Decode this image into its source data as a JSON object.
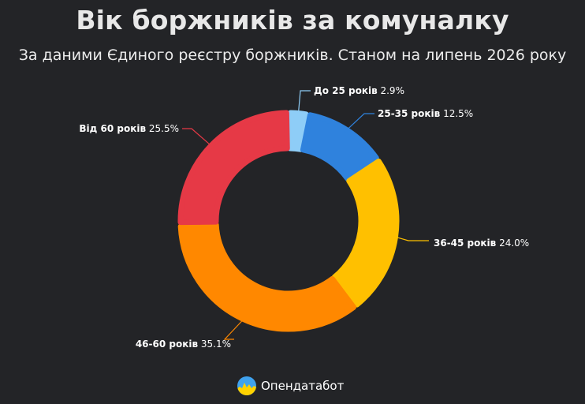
{
  "chart_data": {
    "type": "pie",
    "title": "Вік боржників за комуналку",
    "subtitle": "За даними Єдиного реєстру боржників. Станом на липень 2026 року",
    "donut": true,
    "slices": [
      {
        "label": "До 25 років",
        "value": 2.9,
        "value_label": "2.9%",
        "color": "#8ecdf7"
      },
      {
        "label": "25-35 років",
        "value": 12.5,
        "value_label": "12.5%",
        "color": "#2f82dd"
      },
      {
        "label": "36-45 років",
        "value": 24.0,
        "value_label": "24.0%",
        "color": "#ffc000"
      },
      {
        "label": "46-60 років",
        "value": 35.1,
        "value_label": "35.1%",
        "color": "#ff8800"
      },
      {
        "label": "Від 60 років",
        "value": 25.5,
        "value_label": "25.5%",
        "color": "#e63946"
      }
    ]
  },
  "brand": {
    "name": "Опендатабот",
    "icon": "opendatabot-logo-icon"
  }
}
